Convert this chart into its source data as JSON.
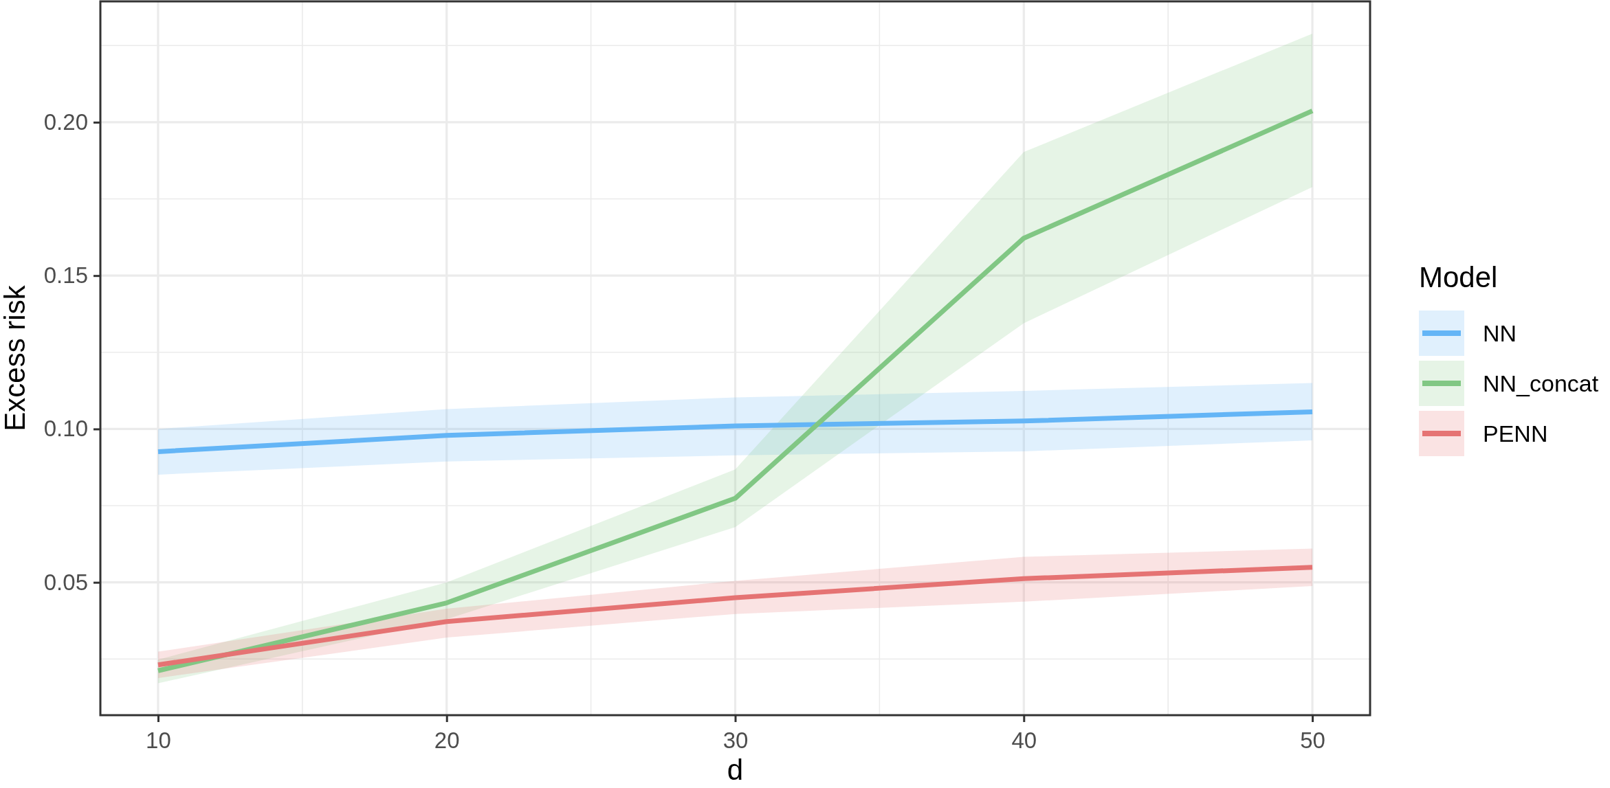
{
  "chart_data": {
    "type": "line",
    "xlabel": "d",
    "ylabel": "Excess risk",
    "legend_title": "Model",
    "x": [
      10,
      20,
      30,
      40,
      50
    ],
    "xlim": [
      8,
      52
    ],
    "xticks": [
      10,
      20,
      30,
      40,
      50
    ],
    "ylim": [
      0.0067,
      0.2394
    ],
    "yticks": [
      {
        "value": 0.05,
        "label": "0.05"
      },
      {
        "value": 0.1,
        "label": "0.10"
      },
      {
        "value": 0.15,
        "label": "0.15"
      },
      {
        "value": 0.2,
        "label": "0.20"
      }
    ],
    "grid": true,
    "legend": "right",
    "line_style": "solid",
    "marker": "none",
    "series": [
      {
        "name": "NN",
        "color": "#64b5f6",
        "values": [
          0.0926,
          0.0979,
          0.101,
          0.1026,
          0.1056
        ],
        "lower": [
          0.0851,
          0.0894,
          0.0914,
          0.0927,
          0.0963
        ],
        "upper": [
          0.1,
          0.1065,
          0.1103,
          0.1124,
          0.115
        ]
      },
      {
        "name": "NN_concat",
        "color": "#81c784",
        "values": [
          0.0212,
          0.0433,
          0.0774,
          0.1622,
          0.2037
        ],
        "lower": [
          0.0171,
          0.038,
          0.068,
          0.1345,
          0.1789
        ],
        "upper": [
          0.0248,
          0.05,
          0.0868,
          0.1903,
          0.2289
        ]
      },
      {
        "name": "PENN",
        "color": "#e57373",
        "values": [
          0.0231,
          0.0372,
          0.045,
          0.0512,
          0.0549
        ],
        "lower": [
          0.0188,
          0.032,
          0.0397,
          0.0437,
          0.0488
        ],
        "upper": [
          0.0274,
          0.0414,
          0.0505,
          0.0583,
          0.061
        ]
      }
    ]
  }
}
